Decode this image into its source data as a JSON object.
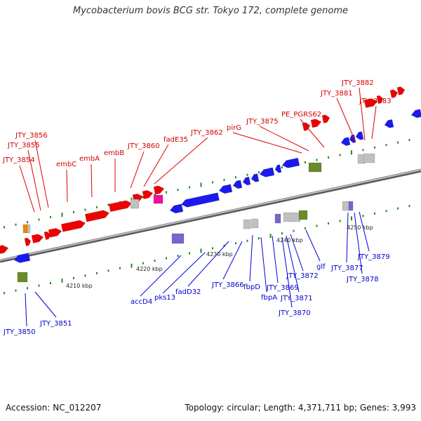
{
  "title": "Mycobacterium bovis BCG str. Tokyo 172, complete genome",
  "footer": {
    "accession": "Accession: NC_012207",
    "summary": "Topology: circular; Length: 4,371,711 bp; Genes: 3,993"
  },
  "colors": {
    "forward_gene": "#ee0000",
    "reverse_gene": "#1a1aee",
    "gray_feature": "#c0c0c0",
    "olive_feature": "#6b8a2a",
    "magenta_feature": "#ee1199",
    "purple_feature": "#7766cc",
    "orange_feature": "#ee8800",
    "tick_green": "#228822",
    "backbone": "#8a8a8a"
  },
  "scale_labels": [
    "4210 kbp",
    "4220 kbp",
    "4230 kbp",
    "4240 kbp",
    "4250 kbp"
  ],
  "top_labels": [
    "JTY_3854",
    "JTY_3855",
    "JTY_3856",
    "embC",
    "embA",
    "embB",
    "JTY_3860",
    "fadE35",
    "JTY_3862",
    "pirG",
    "JTY_3875",
    "PE_PGRS62",
    "JTY_3881",
    "JTY_3882",
    "JTY_3883"
  ],
  "bottom_labels": [
    "JTY_3850",
    "JTY_3851",
    "accD4",
    "pks13",
    "fadD32",
    "JTY_3866",
    "fbpD",
    "fbpA",
    "JTY_3869",
    "JTY_3870",
    "JTY_3871",
    "JTY_3872",
    "glf",
    "JTY_3877",
    "JTY_3878",
    "JTY_3879"
  ]
}
